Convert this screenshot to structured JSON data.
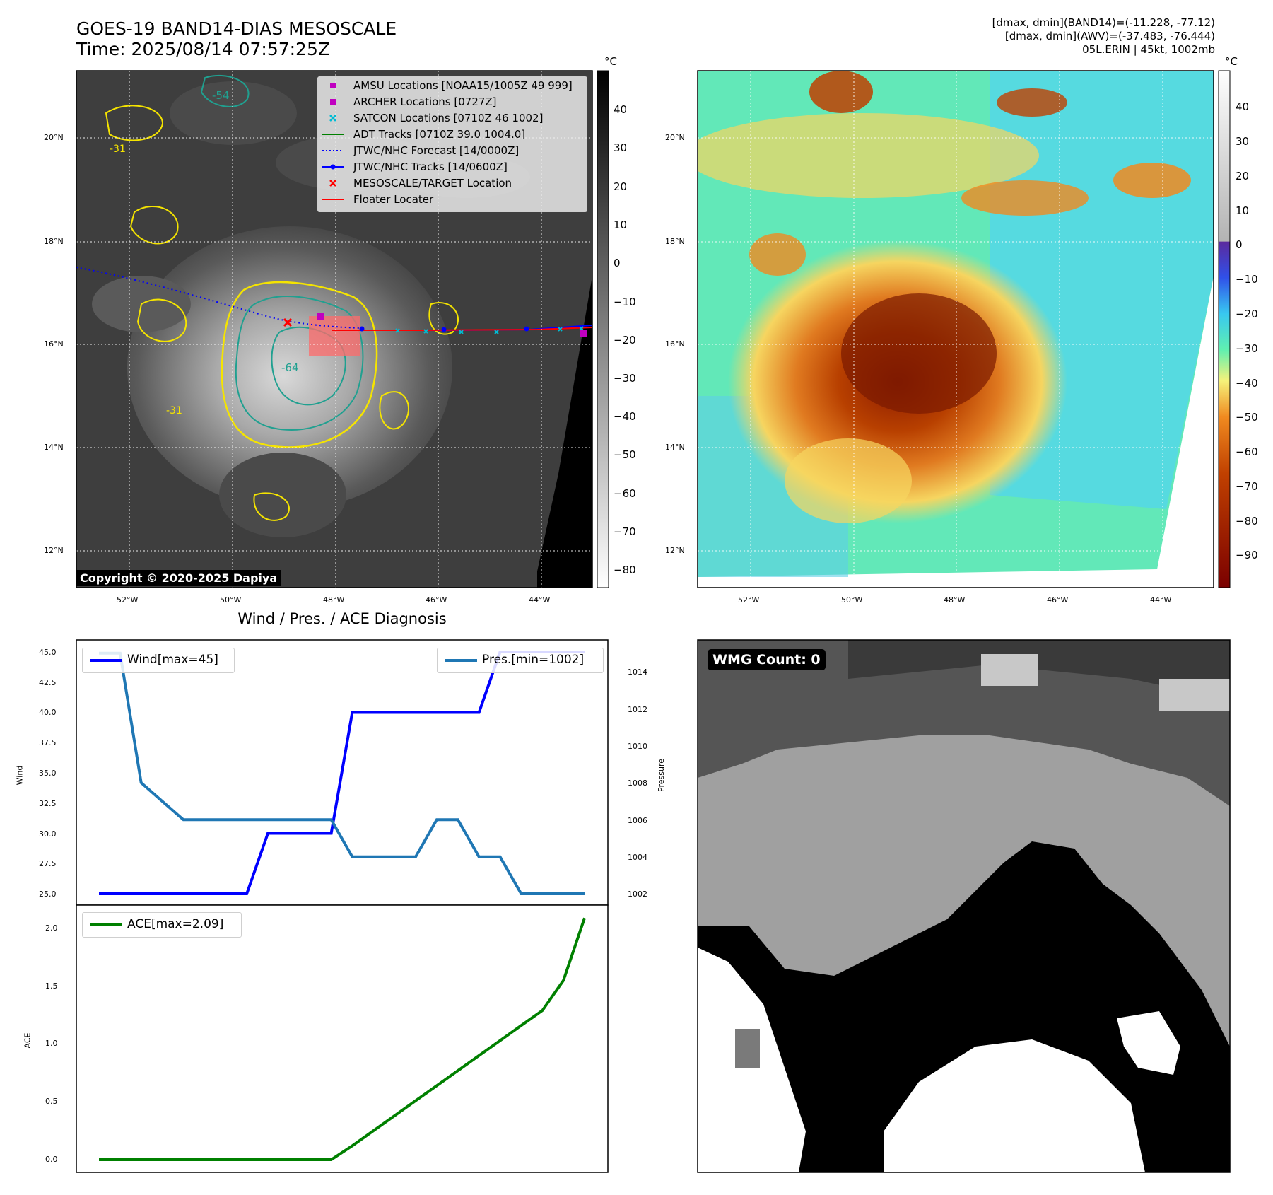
{
  "header": {
    "title_line1": "GOES-19 BAND14-DIAS MESOSCALE",
    "title_line2": "Time: 2025/08/14 07:57:25Z",
    "info_line1": "[dmax, dmin](BAND14)=(-11.228, -77.12)",
    "info_line2": "[dmax, dmin](AWV)=(-37.483, -76.444)",
    "info_line3": "05L.ERIN | 45kt, 1002mb"
  },
  "maps": {
    "lat_ticks": [
      "20°N",
      "18°N",
      "16°N",
      "14°N",
      "12°N"
    ],
    "lon_ticks": [
      "52°W",
      "50°W",
      "48°W",
      "46°W",
      "44°W"
    ],
    "copyright": "Copyright © 2020-2025 Dapiya",
    "contour_labels": [
      "-31",
      "-54",
      "-64"
    ],
    "legend": [
      {
        "label": "AMSU Locations [NOAA15/1005Z 49 999]",
        "color": "#c000c0",
        "marker": "square"
      },
      {
        "label": "ARCHER Locations [0727Z]",
        "color": "#c000c0",
        "marker": "square"
      },
      {
        "label": "SATCON Locations [0710Z 46 1002]",
        "color": "#00bcd4",
        "marker": "x"
      },
      {
        "label": "ADT Tracks [0710Z 39.0 1004.0]",
        "color": "#008000",
        "marker": "line"
      },
      {
        "label": "JTWC/NHC Forecast [14/0000Z]",
        "color": "#0000ff",
        "marker": "dotted"
      },
      {
        "label": "JTWC/NHC Tracks [14/0600Z]",
        "color": "#0000ff",
        "marker": "line-dot"
      },
      {
        "label": "MESOSCALE/TARGET Location",
        "color": "#ff0000",
        "marker": "x"
      },
      {
        "label": "Floater Locater",
        "color": "#ff0000",
        "marker": "line"
      }
    ]
  },
  "colorbars": {
    "unit": "°C",
    "gray_ticks": [
      "40",
      "30",
      "20",
      "10",
      "0",
      "−10",
      "−20",
      "−30",
      "−40",
      "−50",
      "−60",
      "−70",
      "−80"
    ],
    "color_ticks": [
      "40",
      "30",
      "20",
      "10",
      "0",
      "−10",
      "−20",
      "−30",
      "−40",
      "−50",
      "−60",
      "−70",
      "−80",
      "−90"
    ]
  },
  "diagnosis": {
    "title": "Wind / Pres. / ACE Diagnosis",
    "wind_legend": "Wind[max=45]",
    "pres_legend": "Pres.[min=1002]",
    "ace_legend": "ACE[max=2.09]",
    "wind_axis_label": "Wind",
    "pres_axis_label": "Pressure",
    "ace_axis_label": "ACE",
    "wind_ticks": [
      "45.0",
      "42.5",
      "40.0",
      "37.5",
      "35.0",
      "32.5",
      "30.0",
      "27.5",
      "25.0"
    ],
    "pres_ticks": [
      "1014",
      "1012",
      "1010",
      "1008",
      "1006",
      "1004",
      "1002"
    ],
    "ace_ticks": [
      "2.0",
      "1.5",
      "1.0",
      "0.5",
      "0.0"
    ],
    "colors": {
      "wind": "#0000ff",
      "pres": "#1f77b4",
      "ace": "#008000"
    }
  },
  "wmg": {
    "label": "WMG Count: 0"
  },
  "chart_data": [
    {
      "type": "line",
      "title": "Wind / Pres. / ACE Diagnosis",
      "x": [
        0,
        1,
        2,
        3,
        4,
        5,
        6,
        7,
        8,
        9,
        10,
        11,
        12,
        13,
        14,
        15,
        16,
        17,
        18,
        19,
        20,
        21,
        22,
        23
      ],
      "ylim": [
        25.0,
        45.0
      ],
      "y2lim": [
        1002,
        1015
      ],
      "series": [
        {
          "name": "Wind[max=45]",
          "axis": "left",
          "values": [
            25,
            25,
            25,
            25,
            25,
            25,
            25,
            25,
            30,
            30,
            30,
            30,
            40,
            40,
            40,
            40,
            40,
            40,
            40,
            45,
            45,
            45,
            45,
            45
          ]
        },
        {
          "name": "Pres.[min=1002]",
          "axis": "right",
          "values": [
            1015,
            1015,
            1008,
            1007,
            1006,
            1006,
            1006,
            1006,
            1006,
            1006,
            1006,
            1006,
            1004,
            1004,
            1004,
            1004,
            1006,
            1006,
            1004,
            1004,
            1002,
            1002,
            1002,
            1002
          ]
        }
      ]
    },
    {
      "type": "line",
      "x": [
        0,
        1,
        2,
        3,
        4,
        5,
        6,
        7,
        8,
        9,
        10,
        11,
        12,
        13,
        14,
        15,
        16,
        17,
        18,
        19,
        20,
        21,
        22,
        23
      ],
      "ylim": [
        -0.1,
        2.2
      ],
      "series": [
        {
          "name": "ACE[max=2.09]",
          "values": [
            0,
            0,
            0,
            0,
            0,
            0,
            0,
            0,
            0,
            0,
            0,
            0,
            0.12,
            0.25,
            0.38,
            0.51,
            0.64,
            0.77,
            0.9,
            1.03,
            1.16,
            1.29,
            1.55,
            2.09
          ]
        }
      ]
    }
  ]
}
